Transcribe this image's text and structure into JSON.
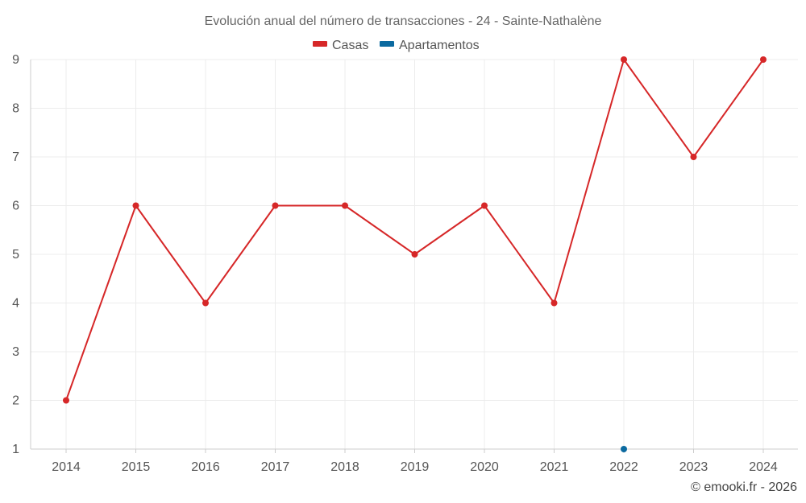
{
  "chart_data": {
    "type": "line",
    "title": "Evolución anual del número de transacciones - 24 - Sainte-Nathalène",
    "categories": [
      "2014",
      "2015",
      "2016",
      "2017",
      "2018",
      "2019",
      "2020",
      "2021",
      "2022",
      "2023",
      "2024"
    ],
    "series": [
      {
        "name": "Casas",
        "color": "#d62728",
        "values": [
          2,
          6,
          4,
          6,
          6,
          5,
          6,
          4,
          9,
          7,
          9
        ]
      },
      {
        "name": "Apartamentos",
        "color": "#0b6aa0",
        "values": [
          null,
          null,
          null,
          null,
          null,
          null,
          null,
          null,
          1,
          null,
          null
        ]
      }
    ],
    "ylim": [
      1,
      9
    ],
    "yticks": [
      "1",
      "2",
      "3",
      "4",
      "5",
      "6",
      "7",
      "8",
      "9"
    ],
    "xlabel": "",
    "ylabel": "",
    "grid": true,
    "legend": "top-center"
  },
  "credit": "© emooki.fr - 2026"
}
